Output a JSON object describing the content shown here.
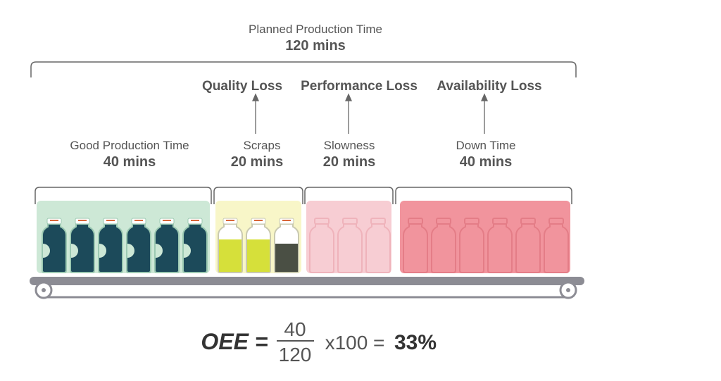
{
  "header": {
    "title": "Planned Production Time",
    "value": "120 mins"
  },
  "losses": [
    "Quality Loss",
    "Performance Loss",
    "Availability Loss"
  ],
  "segments": [
    {
      "label": "Good Production Time",
      "value": "40 mins"
    },
    {
      "label": "Scraps",
      "value": "20 mins"
    },
    {
      "label": "Slowness",
      "value": "20 mins"
    },
    {
      "label": "Down Time",
      "value": "40 mins"
    }
  ],
  "formula": {
    "lhs": "OEE =",
    "numerator": "40",
    "denominator": "120",
    "multiplier": "x100 =",
    "result": "33%"
  }
}
